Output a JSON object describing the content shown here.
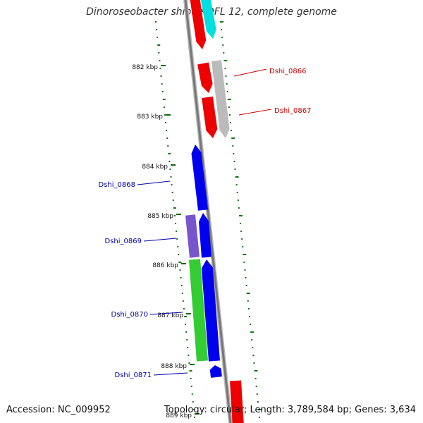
{
  "title": "Dinoroseobacter shibae DFL 12, complete genome",
  "accession": "Accession: NC_009952",
  "topology": "Topology: circular; Length: 3,789,584 bp; Genes: 3,634",
  "colors": {
    "backbone": "#888888",
    "tick": "#116611",
    "label_red": "#cc0000",
    "label_blue": "#0000aa"
  },
  "position_ticks": [
    {
      "label": "882 kbp"
    },
    {
      "label": "883 kbp"
    },
    {
      "label": "884 kbp"
    },
    {
      "label": "885 kbp"
    },
    {
      "label": "886 kbp"
    },
    {
      "label": "887 kbp"
    },
    {
      "label": "888 kbp"
    },
    {
      "label": "889 kbp"
    }
  ],
  "genes": [
    {
      "name": "",
      "color": "#ee0000"
    },
    {
      "name": "",
      "color": "#00e0e0"
    },
    {
      "name": "",
      "color": "#ee0000"
    },
    {
      "name": "Dshi_0866",
      "color": "#bbbbbb"
    },
    {
      "name": "",
      "color": "#ee0000"
    },
    {
      "name": "Dshi_0867",
      "color": "#bbbbbb"
    },
    {
      "name": "Dshi_0868",
      "color": "#0000ee"
    },
    {
      "name": "",
      "color": "#0000ee"
    },
    {
      "name": "Dshi_0869",
      "color": "#7755cc"
    },
    {
      "name": "",
      "color": "#0000ee"
    },
    {
      "name": "Dshi_0870",
      "color": "#33cc33"
    },
    {
      "name": "Dshi_0871",
      "color": "#0000ee"
    },
    {
      "name": "",
      "color": "#ee0000"
    }
  ]
}
